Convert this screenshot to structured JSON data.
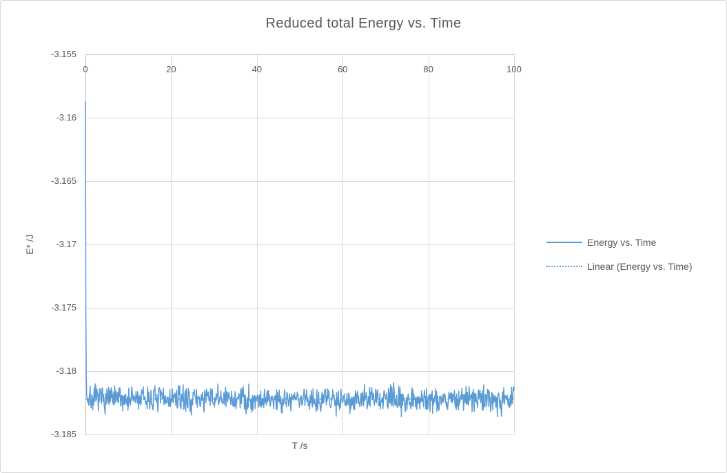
{
  "window": {
    "background": "#FFFFFF",
    "border_color": "#D6D6D6"
  },
  "chart_data": {
    "type": "line",
    "title": "Reduced total Energy vs. Time",
    "xlabel": "T /s",
    "ylabel": "E* /J",
    "xlim": [
      0,
      100
    ],
    "ylim": [
      -3.185,
      -3.155
    ],
    "xticks": {
      "values": [
        0,
        20,
        40,
        60,
        80,
        100
      ],
      "labels": [
        "0",
        "20",
        "40",
        "60",
        "80",
        "100"
      ]
    },
    "yticks": {
      "values": [
        -3.155,
        -3.16,
        -3.165,
        -3.17,
        -3.175,
        -3.18,
        -3.185
      ],
      "labels": [
        "-3.155",
        "-3.16",
        "-3.165",
        "-3.17",
        "-3.175",
        "-3.18",
        "-3.185"
      ]
    },
    "grid": true,
    "legend_position": "right",
    "colors": {
      "accent": "#5B9BD5",
      "grid": "#D9D9D9",
      "axis": "#BFBFBF",
      "text": "#595959"
    },
    "series": [
      {
        "name": "Energy vs. Time",
        "style": "solid",
        "color": "#5B9BD5",
        "description": "Noisy trace: starts at -3.1587 J at t=0 s, drops almost vertically and then fluctuates about -3.1822 J (max deviation ~0.0015 J) out to t=100 s",
        "start_value": -3.1587,
        "equilibrium_mean": -3.1822,
        "noise_amplitude": 0.0015,
        "relax_time": 0.08,
        "points": 1001,
        "seed": 7
      },
      {
        "name": "Linear (Energy vs. Time)",
        "style": "dotted",
        "color": "#5B9BD5",
        "description": "Flat linear trendline at the equilibrium level, hidden inside the noise band",
        "trend_intercept": -3.1822,
        "trend_slope": 0.0
      }
    ]
  }
}
